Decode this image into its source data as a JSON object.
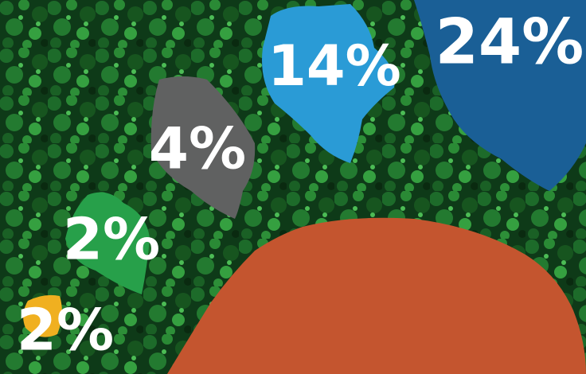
{
  "regions": [
    {
      "label": "24%"
    },
    {
      "label": "14%"
    },
    {
      "label": "4%"
    },
    {
      "label": "2%"
    },
    {
      "label": "2%"
    }
  ]
}
